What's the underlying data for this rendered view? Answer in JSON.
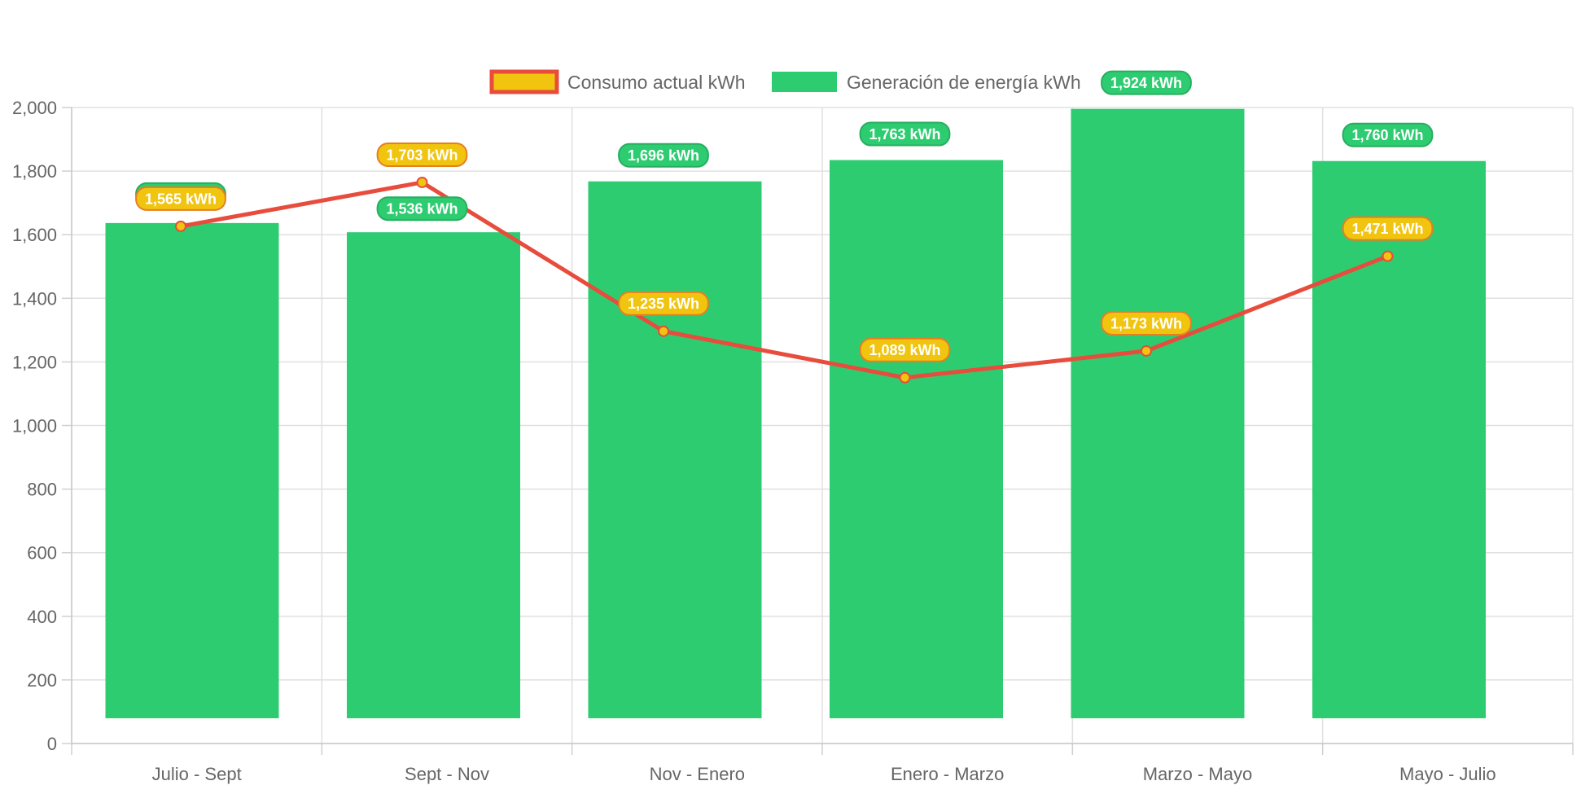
{
  "chart_data": {
    "type": "bar",
    "categories": [
      "Julio - Sept",
      "Sept - Nov",
      "Nov - Enero",
      "Enero - Marzo",
      "Marzo - Mayo",
      "Mayo - Julio"
    ],
    "series": [
      {
        "name": "Generación de energía kWh",
        "type": "bar",
        "values": [
          1565,
          1536,
          1696,
          1763,
          1924,
          1760
        ],
        "data_labels": [
          "1,565 kWh",
          "1,536 kWh",
          "1,696 kWh",
          "1,763 kWh",
          "1,924 kWh",
          "1,760 kWh"
        ],
        "color": "#2ecc71",
        "label_border": "#27ae60"
      },
      {
        "name": "Consumo actual kWh",
        "type": "line",
        "values": [
          1565,
          1703,
          1235,
          1089,
          1173,
          1471
        ],
        "data_labels": [
          "1,565 kWh",
          "1,703 kWh",
          "1,235 kWh",
          "1,089 kWh",
          "1,173 kWh",
          "1,471 kWh"
        ],
        "color": "#e74c3c",
        "point_color": "#f1c40f",
        "label_border": "#e67e22"
      }
    ],
    "y_ticks": [
      "0",
      "200",
      "400",
      "600",
      "800",
      "1,000",
      "1,200",
      "1,400",
      "1,600",
      "1,800",
      "2,000"
    ],
    "ylim": [
      0,
      2000
    ],
    "grid": true,
    "legend_position": "top-center",
    "title": "",
    "xlabel": "",
    "ylabel": ""
  }
}
